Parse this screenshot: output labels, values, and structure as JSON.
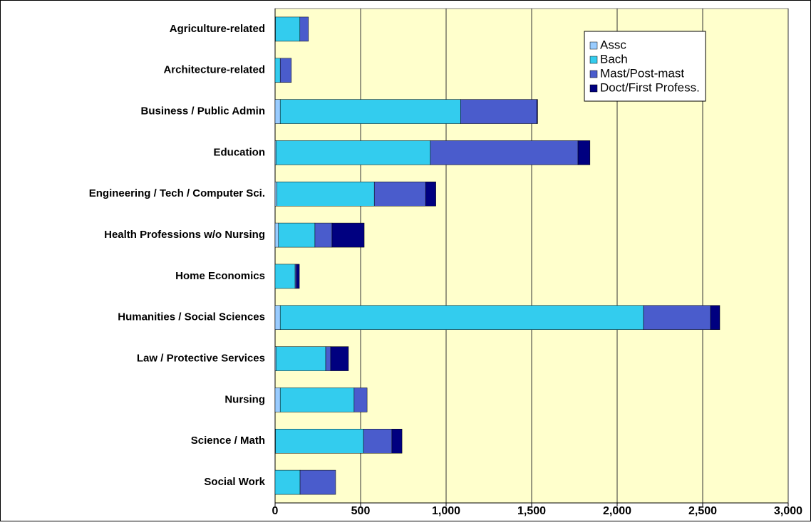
{
  "chart_data": {
    "type": "stacked-bar-horizontal",
    "categories": [
      "Agriculture-related",
      "Architecture-related",
      "Business / Public Admin",
      "Education",
      "Engineering / Tech / Computer Sci.",
      "Health Professions w/o Nursing",
      "Home Economics",
      "Humanities / Social Sciences",
      "Law / Protective Services",
      "Nursing",
      "Science / Math",
      "Social Work"
    ],
    "series": [
      {
        "name": "Assc",
        "color": "#99ccff",
        "values": [
          2,
          0,
          30,
          5,
          10,
          20,
          0,
          30,
          5,
          30,
          2,
          0
        ]
      },
      {
        "name": "Bach",
        "color": "#33ccee",
        "values": [
          143,
          30,
          1055,
          903,
          570,
          213,
          117,
          2124,
          291,
          432,
          515,
          146
        ]
      },
      {
        "name": "Mast/Post-mast",
        "color": "#4a5ccc",
        "values": [
          50,
          65,
          445,
          863,
          300,
          100,
          8,
          392,
          29,
          76,
          166,
          208
        ]
      },
      {
        "name": "Doct/First Profess.",
        "color": "#000080",
        "values": [
          0,
          0,
          5,
          70,
          60,
          188,
          17,
          54,
          104,
          0,
          59,
          0
        ]
      }
    ],
    "xlim": [
      0,
      3000
    ],
    "xticks": [
      0,
      500,
      {
        "value": 1000,
        "label": "1,000"
      },
      {
        "value": 1500,
        "label": "1,500"
      },
      {
        "value": 2000,
        "label": "2,000"
      },
      {
        "value": 2500,
        "label": "2,500"
      },
      {
        "value": 3000,
        "label": "3,000"
      }
    ],
    "grid": true,
    "legend": "upper right"
  }
}
